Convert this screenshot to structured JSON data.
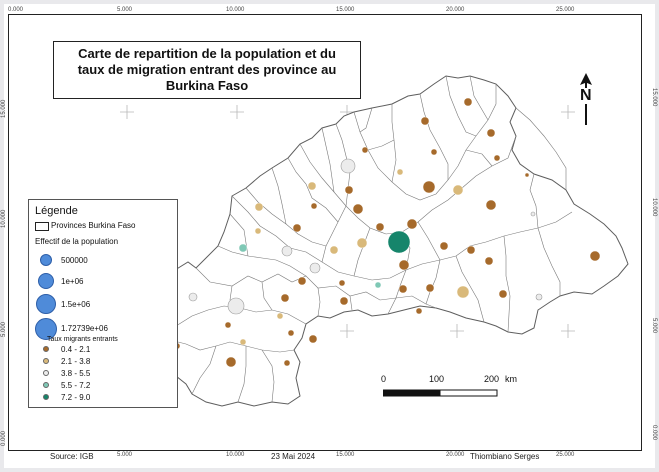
{
  "map": {
    "title_lines": [
      "Carte de repartition de la population et du",
      "taux de migration entrant des province au",
      "Burkina Faso"
    ],
    "grid_x_labels": [
      "0.000",
      "5.000",
      "10.000",
      "15.000",
      "20.000",
      "25.000"
    ],
    "grid_y_labels": [
      "0.000",
      "5.000",
      "10.000",
      "15.000"
    ],
    "north_label": "N",
    "scale_labels": [
      "0",
      "100",
      "200",
      "km"
    ],
    "colors": {
      "province_fill": "#ffffff",
      "province_stroke": "#6b6b6b",
      "rate_0": "#a66a2b",
      "rate_1": "#d9b97a",
      "rate_2": "#ececec",
      "rate_3": "#7fc8b5",
      "rate_4": "#16856b",
      "population_symbol": "#4f8bd9"
    }
  },
  "legend": {
    "title": "Légende",
    "provinces_label": "Provinces Burkina Faso",
    "population_title": "Effectif de la population",
    "population_classes": [
      "500000",
      "1e+06",
      "1.5e+06",
      "1.72739e+06"
    ],
    "rate_title": "Taux migrants entrants",
    "rate_classes": [
      "0.4 - 2.1",
      "2.1 - 3.8",
      "3.8 - 5.5",
      "5.5 - 7.2",
      "7.2 - 9.0"
    ]
  },
  "footer": {
    "source": "Source: IGB",
    "date": "23 Mai 2024",
    "author": "Thiombiano Serges"
  }
}
